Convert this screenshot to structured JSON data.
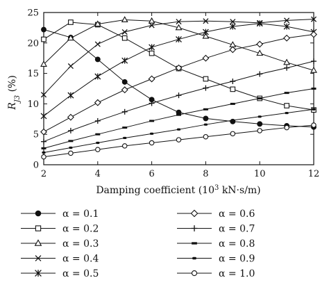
{
  "chart_data": {
    "type": "line",
    "title": "",
    "xlabel": "Damping coefficient (10",
    "xlabel_sup": "3",
    "xlabel_tail": " kN·s/m)",
    "ylabel": "R",
    "ylabel_sub": "J3",
    "ylabel_tail": " (%)",
    "xlim": [
      2,
      12
    ],
    "ylim": [
      0,
      25
    ],
    "xticks": [
      2,
      4,
      6,
      8,
      10,
      12
    ],
    "yticks": [
      0,
      5,
      10,
      15,
      20,
      25
    ],
    "grid": false,
    "legend_position": "bottom, two columns",
    "x": [
      2,
      3,
      4,
      5,
      6,
      7,
      8,
      9,
      10,
      11,
      12
    ],
    "series": [
      {
        "name": "α = 0.1",
        "marker": "filled-circle",
        "values": [
          22.2,
          20.9,
          17.3,
          13.6,
          10.7,
          8.6,
          7.6,
          7.1,
          6.7,
          6.4,
          6.2
        ]
      },
      {
        "name": "α = 0.2",
        "marker": "open-square",
        "values": [
          20.6,
          23.4,
          23.0,
          20.8,
          18.3,
          15.8,
          14.1,
          12.4,
          10.9,
          9.7,
          9.0
        ]
      },
      {
        "name": "α = 0.3",
        "marker": "open-triangle",
        "values": [
          16.5,
          20.8,
          23.1,
          23.8,
          23.6,
          22.5,
          21.1,
          19.7,
          18.3,
          16.8,
          15.5
        ]
      },
      {
        "name": "α = 0.4",
        "marker": "x",
        "values": [
          11.5,
          16.2,
          19.8,
          21.8,
          22.9,
          23.5,
          23.6,
          23.5,
          23.3,
          23.7,
          23.9
        ]
      },
      {
        "name": "α = 0.5",
        "marker": "asterisk",
        "values": [
          8.0,
          11.4,
          14.5,
          17.1,
          19.3,
          20.6,
          21.8,
          22.7,
          23.2,
          22.7,
          21.8
        ]
      },
      {
        "name": "α = 0.6",
        "marker": "open-diamond",
        "values": [
          5.4,
          7.8,
          10.2,
          12.3,
          14.1,
          15.9,
          17.5,
          18.9,
          19.8,
          20.8,
          21.4
        ]
      },
      {
        "name": "α = 0.7",
        "marker": "plus",
        "values": [
          3.8,
          5.6,
          7.2,
          8.7,
          10.1,
          11.4,
          12.6,
          13.7,
          14.9,
          15.9,
          17.0
        ]
      },
      {
        "name": "α = 0.8",
        "marker": "dash",
        "values": [
          2.7,
          3.9,
          5.0,
          6.1,
          7.2,
          8.2,
          9.1,
          10.0,
          10.9,
          11.8,
          12.5
        ]
      },
      {
        "name": "α = 0.9",
        "marker": "filled-small",
        "values": [
          2.0,
          2.8,
          3.6,
          4.4,
          5.1,
          5.8,
          6.6,
          7.3,
          7.9,
          8.5,
          9.1
        ]
      },
      {
        "name": "α = 1.0",
        "marker": "open-circle",
        "values": [
          1.3,
          1.9,
          2.5,
          3.1,
          3.6,
          4.1,
          4.6,
          5.1,
          5.6,
          6.1,
          6.5
        ]
      }
    ]
  },
  "colors": {
    "line": "#111111",
    "background": "#ffffff"
  }
}
